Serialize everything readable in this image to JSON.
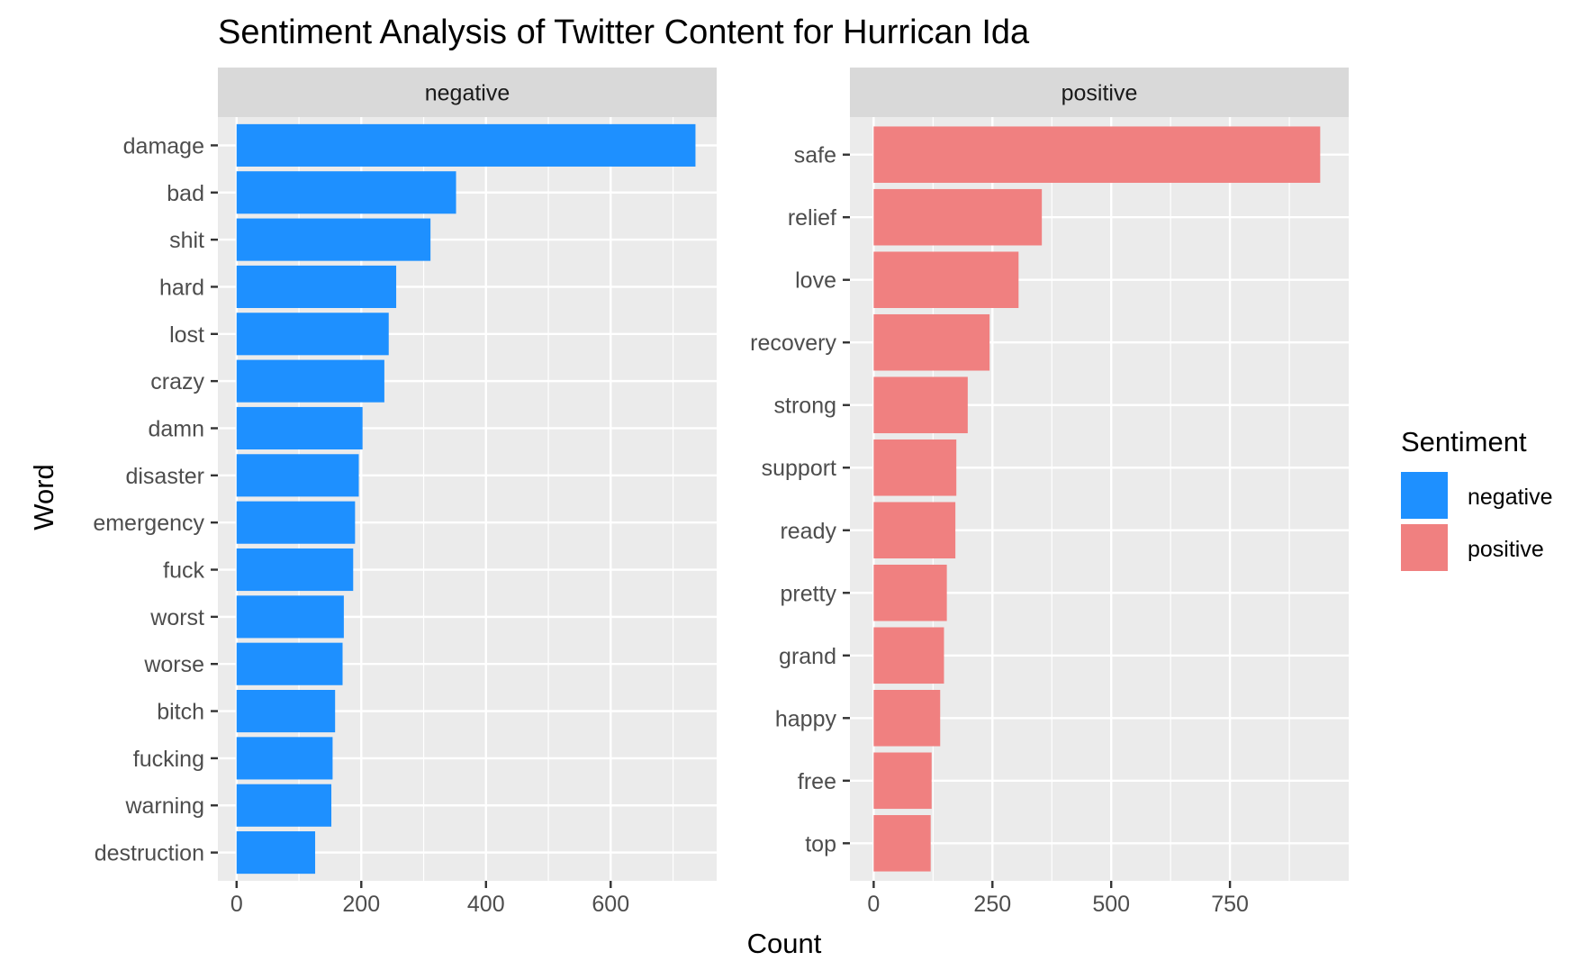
{
  "chart_data": {
    "type": "bar",
    "orientation": "horizontal",
    "title": "Sentiment Analysis of Twitter Content for Hurrican Ida",
    "xlabel": "Count",
    "ylabel": "Word",
    "legend": {
      "title": "Sentiment",
      "placement": "right",
      "entries": [
        {
          "label": "negative",
          "color": "#1E90FF"
        },
        {
          "label": "positive",
          "color": "#F08080"
        }
      ]
    },
    "grid": true,
    "panels": [
      {
        "facet": "negative",
        "color": "#1E90FF",
        "xlim": [
          -30,
          770
        ],
        "xticks": [
          0,
          200,
          400,
          600
        ],
        "xtick_labels": [
          "0",
          "200",
          "400",
          "600"
        ],
        "categories": [
          "damage",
          "bad",
          "shit",
          "hard",
          "lost",
          "crazy",
          "damn",
          "disaster",
          "emergency",
          "fuck",
          "worst",
          "worse",
          "bitch",
          "fucking",
          "warning",
          "destruction"
        ],
        "values": [
          736,
          352,
          311,
          256,
          244,
          237,
          202,
          196,
          190,
          187,
          172,
          170,
          158,
          154,
          152,
          126
        ]
      },
      {
        "facet": "positive",
        "color": "#F08080",
        "xlim": [
          -50,
          1000
        ],
        "xticks": [
          0,
          250,
          500,
          750
        ],
        "xtick_labels": [
          "0",
          "250",
          "500",
          "750"
        ],
        "categories": [
          "safe",
          "relief",
          "love",
          "recovery",
          "strong",
          "support",
          "ready",
          "pretty",
          "grand",
          "happy",
          "free",
          "top"
        ],
        "values": [
          940,
          354,
          305,
          244,
          198,
          174,
          172,
          154,
          148,
          140,
          122,
          120
        ]
      }
    ]
  }
}
